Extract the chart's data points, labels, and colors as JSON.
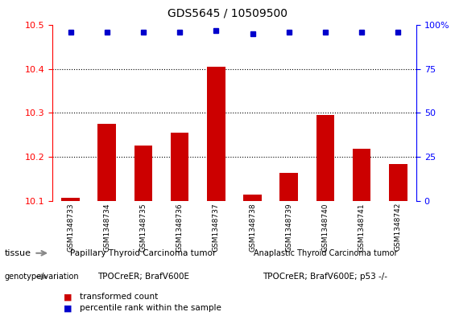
{
  "title": "GDS5645 / 10509500",
  "samples": [
    "GSM1348733",
    "GSM1348734",
    "GSM1348735",
    "GSM1348736",
    "GSM1348737",
    "GSM1348738",
    "GSM1348739",
    "GSM1348740",
    "GSM1348741",
    "GSM1348742"
  ],
  "transformed_counts": [
    10.107,
    10.275,
    10.225,
    10.255,
    10.405,
    10.113,
    10.163,
    10.295,
    10.218,
    10.183
  ],
  "percentile_ranks": [
    96,
    96,
    96,
    96,
    97,
    95,
    96,
    96,
    96,
    96
  ],
  "ylim_left": [
    10.1,
    10.5
  ],
  "ylim_right": [
    0,
    100
  ],
  "yticks_left": [
    10.1,
    10.2,
    10.3,
    10.4,
    10.5
  ],
  "yticks_right": [
    0,
    25,
    50,
    75,
    100
  ],
  "bar_color": "#cc0000",
  "dot_color": "#0000cc",
  "tissue_group1": "Papillary Thyroid Carcinoma tumor",
  "tissue_group2": "Anaplastic Thyroid Carcinoma tumor",
  "genotype_group1": "TPOCreER; BrafV600E",
  "genotype_group2": "TPOCreER; BrafV600E; p53 -/-",
  "tissue_color": "#66dd66",
  "genotype_color": "#ee82ee",
  "split_index": 5,
  "legend_bar_label": "transformed count",
  "legend_dot_label": "percentile rank within the sample"
}
